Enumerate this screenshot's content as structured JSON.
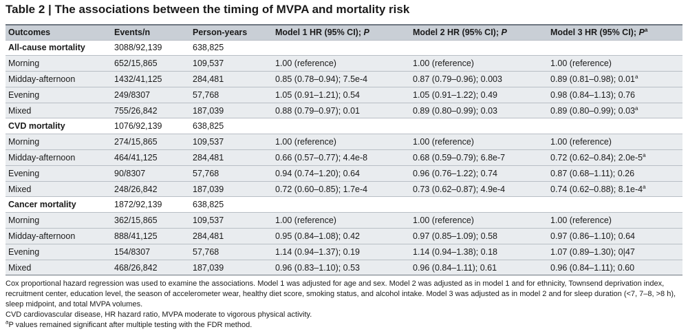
{
  "title": "Table 2 | The associations between the timing of MVPA and mortality risk",
  "header": [
    "Outcomes",
    "Events/n",
    "Person-years",
    "Model 1 HR (95% CI); P",
    "Model 2 HR (95% CI); P",
    "Model 3 HR (95% CI); P"
  ],
  "rows": [
    {
      "type": "grp",
      "cells": [
        "All-cause mortality",
        "3088/92,139",
        "638,825",
        "",
        "",
        ""
      ]
    },
    {
      "type": "sub",
      "cells": [
        "Morning",
        "652/15,865",
        "109,537",
        "1.00 (reference)",
        "1.00 (reference)",
        "1.00 (reference)"
      ]
    },
    {
      "type": "sub",
      "cells": [
        "Midday-afternoon",
        "1432/41,125",
        "284,481",
        "0.85 (0.78–0.94); 7.5e-4",
        "0.87 (0.79–0.96); 0.003",
        "0.89 (0.81–0.98); 0.01"
      ],
      "sup": "a"
    },
    {
      "type": "sub",
      "cells": [
        "Evening",
        "249/8307",
        "57,768",
        "1.05 (0.91–1.21); 0.54",
        "1.05 (0.91–1.22); 0.49",
        "0.98 (0.84–1.13); 0.76"
      ]
    },
    {
      "type": "sub",
      "cells": [
        "Mixed",
        "755/26,842",
        "187,039",
        "0.88 (0.79–0.97); 0.01",
        "0.89 (0.80–0.99); 0.03",
        "0.89 (0.80–0.99); 0.03"
      ],
      "sup": "a"
    },
    {
      "type": "grp",
      "cells": [
        "CVD mortality",
        "1076/92,139",
        "638,825",
        "",
        "",
        ""
      ]
    },
    {
      "type": "sub",
      "cells": [
        "Morning",
        "274/15,865",
        "109,537",
        "1.00 (reference)",
        "1.00 (reference)",
        "1.00 (reference)"
      ]
    },
    {
      "type": "sub",
      "cells": [
        "Midday-afternoon",
        "464/41,125",
        "284,481",
        "0.66 (0.57–0.77); 4.4e-8",
        "0.68 (0.59–0.79); 6.8e-7",
        "0.72 (0.62–0.84); 2.0e-5"
      ],
      "sup": "a"
    },
    {
      "type": "sub",
      "cells": [
        "Evening",
        "90/8307",
        "57,768",
        "0.94 (0.74–1.20); 0.64",
        "0.96 (0.76–1.22); 0.74",
        "0.87 (0.68–1.11); 0.26"
      ]
    },
    {
      "type": "sub",
      "cells": [
        "Mixed",
        "248/26,842",
        "187,039",
        "0.72 (0.60–0.85); 1.7e-4",
        "0.73 (0.62–0.87); 4.9e-4",
        "0.74 (0.62–0.88); 8.1e-4"
      ],
      "sup": "a"
    },
    {
      "type": "grp",
      "cells": [
        "Cancer mortality",
        "1872/92,139",
        "638,825",
        "",
        "",
        ""
      ]
    },
    {
      "type": "sub",
      "cells": [
        "Morning",
        "362/15,865",
        "109,537",
        "1.00 (reference)",
        "1.00 (reference)",
        "1.00 (reference)"
      ]
    },
    {
      "type": "sub",
      "cells": [
        "Midday-afternoon",
        "888/41,125",
        "284,481",
        "0.95 (0.84–1.08); 0.42",
        "0.97 (0.85–1.09); 0.58",
        "0.97 (0.86–1.10); 0.64"
      ]
    },
    {
      "type": "sub",
      "cells": [
        "Evening",
        "154/8307",
        "57,768",
        "1.14 (0.94–1.37); 0.19",
        "1.14 (0.94–1.38); 0.18",
        "1.07 (0.89–1.30); 0|47"
      ]
    },
    {
      "type": "sub",
      "cells": [
        "Mixed",
        "468/26,842",
        "187,039",
        "0.96 (0.83–1.10); 0.53",
        "0.96 (0.84–1.11); 0.61",
        "0.96 (0.84–1.11); 0.60"
      ]
    }
  ],
  "notes": {
    "p1": "Cox proportional hazard regression was used to examine the associations. Model 1 was adjusted for age and sex. Model 2 was adjusted as in model 1 and for ethnicity, Townsend deprivation index, recruitment center, education level, the season of accelerometer wear, healthy diet score, smoking status, and alcohol intake. Model 3 was adjusted as in model 2 and for sleep duration (<7, 7–8, >8 h), sleep midpoint, and total MVPA volumes.",
    "p2": "CVD cardiovascular disease, HR hazard ratio, MVPA moderate to vigorous physical activity.",
    "p3_sup": "a",
    "p3": "P values remained significant after multiple testing with the FDR method."
  }
}
